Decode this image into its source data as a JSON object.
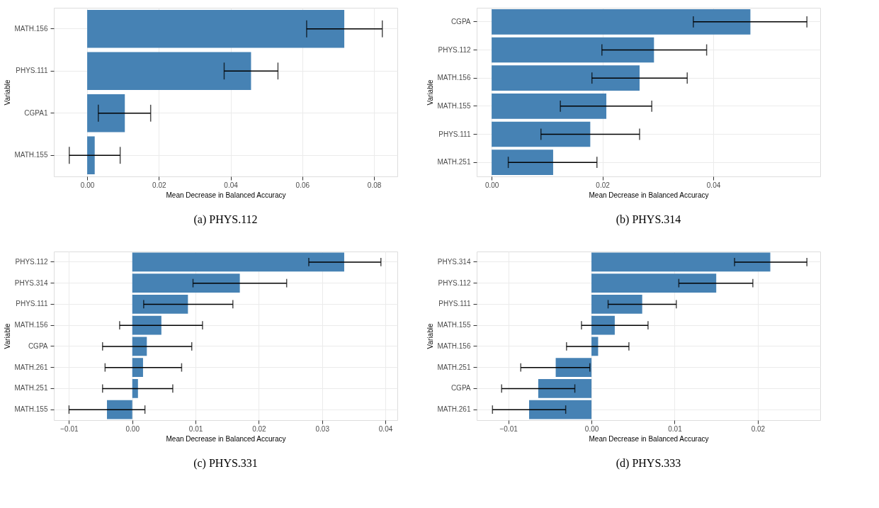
{
  "chart_data": [
    {
      "type": "bar",
      "orientation": "horizontal",
      "title": "(a) PHYS.112",
      "xlabel": "Mean Decrease in Balanced Accuracy",
      "ylabel": "Variable",
      "color": "#4682b4",
      "grid": true,
      "categories": [
        "MATH.156",
        "PHYS.111",
        "CGPA1",
        "MATH.155"
      ],
      "values": [
        0.0717,
        0.0457,
        0.0105,
        0.0021
      ],
      "errors": [
        [
          0.0612,
          0.0823
        ],
        [
          0.0382,
          0.0532
        ],
        [
          0.0031,
          0.0177
        ],
        [
          -0.005,
          0.0092
        ]
      ],
      "xlim": [
        -0.0093,
        0.0865
      ],
      "xticks": [
        {
          "value": 0,
          "label": "0.00"
        },
        {
          "value": 0.02,
          "label": "0.02"
        },
        {
          "value": 0.04,
          "label": "0.04"
        },
        {
          "value": 0.06,
          "label": "0.06"
        },
        {
          "value": 0.08,
          "label": "0.08"
        }
      ]
    },
    {
      "type": "bar",
      "orientation": "horizontal",
      "title": "(b) PHYS.314",
      "xlabel": "Mean Decrease in Balanced Accuracy",
      "ylabel": "Variable",
      "color": "#4682b4",
      "grid": true,
      "categories": [
        "CGPA",
        "PHYS.112",
        "MATH.156",
        "MATH.155",
        "PHYS.111",
        "MATH.251"
      ],
      "values": [
        0.0467,
        0.0293,
        0.0267,
        0.0207,
        0.0178,
        0.0111
      ],
      "errors": [
        [
          0.0364,
          0.0569
        ],
        [
          0.0199,
          0.0388
        ],
        [
          0.0181,
          0.0353
        ],
        [
          0.0124,
          0.0289
        ],
        [
          0.0089,
          0.0267
        ],
        [
          0.003,
          0.019
        ]
      ],
      "xlim": [
        -0.0027,
        0.0593
      ],
      "xticks": [
        {
          "value": 0,
          "label": "0.00"
        },
        {
          "value": 0.02,
          "label": "0.02"
        },
        {
          "value": 0.04,
          "label": "0.04"
        }
      ]
    },
    {
      "type": "bar",
      "orientation": "horizontal",
      "title": "(c) PHYS.331",
      "xlabel": "Mean Decrease in Balanced Accuracy",
      "ylabel": "Variable",
      "color": "#4682b4",
      "grid": true,
      "categories": [
        "PHYS.112",
        "PHYS.314",
        "PHYS.111",
        "MATH.156",
        "CGPA",
        "MATH.261",
        "MATH.251",
        "MATH.155"
      ],
      "values": [
        0.0335,
        0.017,
        0.0088,
        0.0046,
        0.0023,
        0.0017,
        0.0009,
        -0.004
      ],
      "errors": [
        [
          0.0279,
          0.0393
        ],
        [
          0.0096,
          0.0244
        ],
        [
          0.0018,
          0.0159
        ],
        [
          -0.002,
          0.0111
        ],
        [
          -0.0047,
          0.0094
        ],
        [
          -0.0043,
          0.0078
        ],
        [
          -0.0047,
          0.0064
        ],
        [
          -0.01,
          0.002
        ]
      ],
      "xlim": [
        -0.0124,
        0.0419
      ],
      "xticks": [
        {
          "value": -0.01,
          "label": "−0.01"
        },
        {
          "value": 0,
          "label": "0.00"
        },
        {
          "value": 0.01,
          "label": "0.01"
        },
        {
          "value": 0.02,
          "label": "0.02"
        },
        {
          "value": 0.03,
          "label": "0.03"
        },
        {
          "value": 0.04,
          "label": "0.04"
        }
      ]
    },
    {
      "type": "bar",
      "orientation": "horizontal",
      "title": "(d) PHYS.333",
      "xlabel": "Mean Decrease in Balanced Accuracy",
      "ylabel": "Variable",
      "color": "#4682b4",
      "grid": true,
      "categories": [
        "PHYS.314",
        "PHYS.112",
        "PHYS.111",
        "MATH.155",
        "MATH.156",
        "MATH.251",
        "CGPA",
        "MATH.261"
      ],
      "values": [
        0.0215,
        0.015,
        0.0061,
        0.0028,
        0.0008,
        -0.0043,
        -0.0064,
        -0.0075
      ],
      "errors": [
        [
          0.0172,
          0.0259
        ],
        [
          0.0105,
          0.0194
        ],
        [
          0.002,
          0.0102
        ],
        [
          -0.0012,
          0.0068
        ],
        [
          -0.003,
          0.0045
        ],
        [
          -0.0085,
          -0.0002
        ],
        [
          -0.0108,
          -0.002
        ],
        [
          -0.0119,
          -0.0031
        ]
      ],
      "xlim": [
        -0.0138,
        0.0275
      ],
      "xticks": [
        {
          "value": -0.01,
          "label": "−0.01"
        },
        {
          "value": 0,
          "label": "0.00"
        },
        {
          "value": 0.01,
          "label": "0.01"
        },
        {
          "value": 0.02,
          "label": "0.02"
        }
      ]
    }
  ]
}
